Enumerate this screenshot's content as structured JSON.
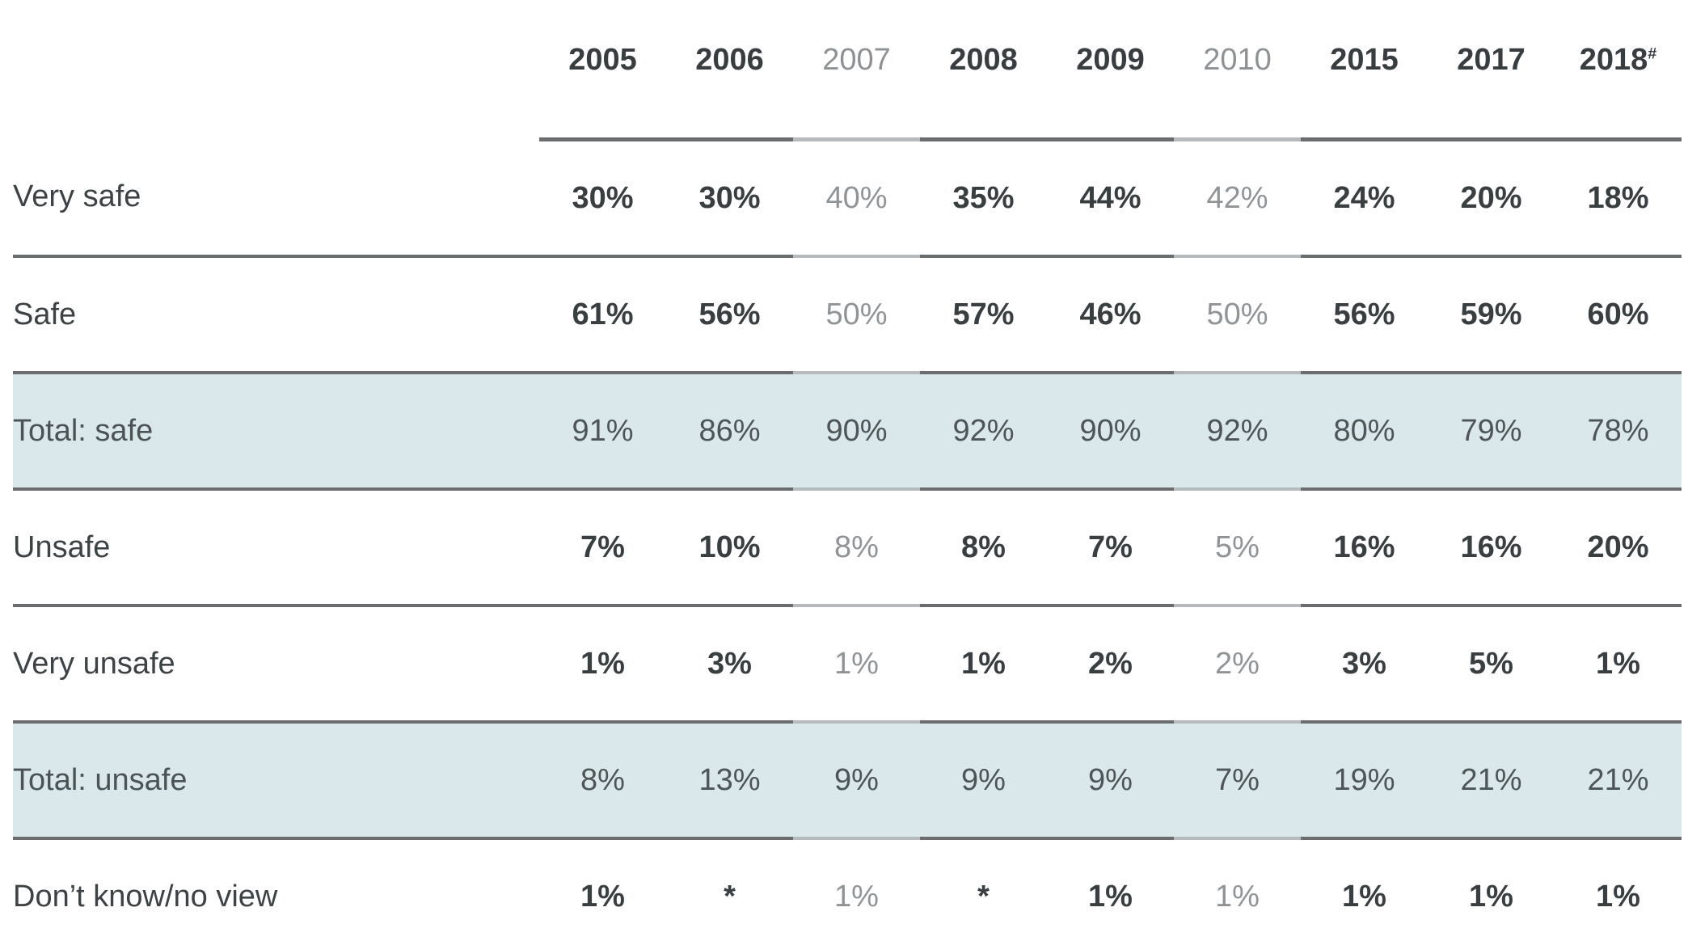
{
  "colors": {
    "highlight_row_bg": "#dbe8eb",
    "border_dark": "#6a6c6e",
    "border_light": "#b7babc",
    "text_dark": "#393e41",
    "text_label": "#3d4245",
    "text_muted": "#919497",
    "text_total": "#4d5558"
  },
  "chart_data": {
    "type": "table",
    "columns": [
      {
        "year": "2005",
        "suffix": "",
        "deemphasized": false
      },
      {
        "year": "2006",
        "suffix": "",
        "deemphasized": false
      },
      {
        "year": "2007",
        "suffix": "",
        "deemphasized": true
      },
      {
        "year": "2008",
        "suffix": "",
        "deemphasized": false
      },
      {
        "year": "2009",
        "suffix": "",
        "deemphasized": false
      },
      {
        "year": "2010",
        "suffix": "",
        "deemphasized": true
      },
      {
        "year": "2015",
        "suffix": "",
        "deemphasized": false
      },
      {
        "year": "2017",
        "suffix": "",
        "deemphasized": false
      },
      {
        "year": "2018",
        "suffix": "#",
        "deemphasized": false
      }
    ],
    "rows": [
      {
        "label": "Very safe",
        "kind": "normal",
        "values": [
          "30%",
          "30%",
          "40%",
          "35%",
          "44%",
          "42%",
          "24%",
          "20%",
          "18%"
        ]
      },
      {
        "label": "Safe",
        "kind": "normal",
        "values": [
          "61%",
          "56%",
          "50%",
          "57%",
          "46%",
          "50%",
          "56%",
          "59%",
          "60%"
        ]
      },
      {
        "label": "Total: safe",
        "kind": "total",
        "values": [
          "91%",
          "86%",
          "90%",
          "92%",
          "90%",
          "92%",
          "80%",
          "79%",
          "78%"
        ]
      },
      {
        "label": "Unsafe",
        "kind": "normal",
        "values": [
          "7%",
          "10%",
          "8%",
          "8%",
          "7%",
          "5%",
          "16%",
          "16%",
          "20%"
        ]
      },
      {
        "label": "Very unsafe",
        "kind": "normal",
        "values": [
          "1%",
          "3%",
          "1%",
          "1%",
          "2%",
          "2%",
          "3%",
          "5%",
          "1%"
        ]
      },
      {
        "label": "Total: unsafe",
        "kind": "total",
        "values": [
          "8%",
          "13%",
          "9%",
          "9%",
          "9%",
          "7%",
          "19%",
          "21%",
          "21%"
        ]
      },
      {
        "label": "Don’t know/no view",
        "kind": "normal",
        "values": [
          "1%",
          "*",
          "1%",
          "*",
          "1%",
          "1%",
          "1%",
          "1%",
          "1%"
        ]
      }
    ]
  }
}
